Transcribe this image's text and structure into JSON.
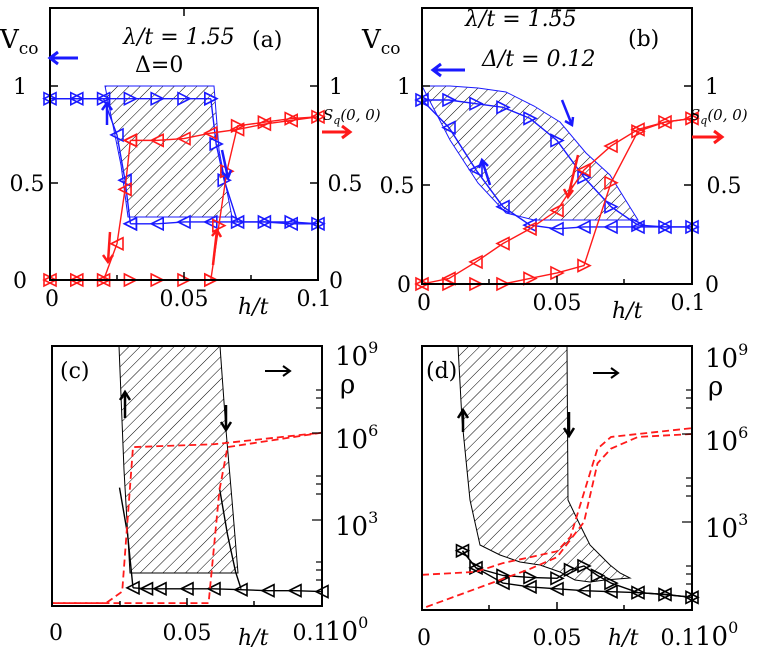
{
  "colors": {
    "blue": "#1a1aff",
    "red": "#ff1a1a",
    "black": "#000000"
  },
  "panels": {
    "a": {
      "label": "(a)",
      "ylabel": "V",
      "ylabel_sub": "co",
      "param1": "λ/t = 1.55",
      "param2": "Δ=0",
      "right_label": "S",
      "right_sub": "q",
      "right_arg": "(0, 0)",
      "xlabel": "h/t",
      "xticks": [
        "0",
        "0.05",
        "0.1"
      ],
      "yticks_left": [
        "0",
        "0.5",
        "1"
      ],
      "yticks_right": [
        "0",
        "0.5",
        "1"
      ]
    },
    "b": {
      "label": "(b)",
      "ylabel": "V",
      "ylabel_sub": "co",
      "param1": "λ/t = 1.55",
      "param2": "Δ/t = 0.12",
      "right_label": "S",
      "right_sub": "q",
      "right_arg": "(0, 0)",
      "xlabel": "h/t",
      "xticks": [
        "0",
        "0.05",
        "0.1"
      ],
      "yticks_left": [
        "0",
        "0.5",
        "1"
      ],
      "yticks_right": [
        "0",
        "0.5",
        "1"
      ]
    },
    "c": {
      "label": "(c)",
      "rlabel": "ρ",
      "xlabel": "h/t",
      "xticks": [
        "0",
        "0.05",
        "0.1"
      ],
      "rticks": [
        {
          "base": "10",
          "exp": "0"
        },
        {
          "base": "10",
          "exp": "3"
        },
        {
          "base": "10",
          "exp": "6"
        },
        {
          "base": "10",
          "exp": "9"
        }
      ]
    },
    "d": {
      "label": "(d)",
      "rlabel": "ρ",
      "xlabel": "h/t",
      "xticks": [
        "0",
        "0.05",
        "0.1"
      ],
      "rticks": [
        {
          "base": "10",
          "exp": "0"
        },
        {
          "base": "10",
          "exp": "3"
        },
        {
          "base": "10",
          "exp": "6"
        },
        {
          "base": "10",
          "exp": "9"
        }
      ]
    }
  },
  "chart_data": [
    {
      "panel": "a",
      "type": "line",
      "xlabel": "h/t",
      "xlim": [
        0,
        0.1
      ],
      "ylim": [
        0,
        1.05
      ],
      "y2lim": [
        0,
        1.05
      ],
      "series": [
        {
          "axis": "left",
          "color": "blue",
          "marker": "right-triangle",
          "x": [
            0,
            0.01,
            0.02,
            0.03,
            0.04,
            0.05,
            0.06
          ],
          "y": [
            1,
            1,
            1,
            1,
            1,
            1,
            1
          ]
        },
        {
          "axis": "left",
          "color": "blue",
          "marker": "right-triangle",
          "x": [
            0.06,
            0.062,
            0.065,
            0.07,
            0.08,
            0.09,
            0.1
          ],
          "y": [
            1,
            0.75,
            0.55,
            0.32,
            0.32,
            0.32,
            0.31
          ]
        },
        {
          "axis": "left",
          "color": "blue",
          "marker": "left-triangle",
          "x": [
            0.1,
            0.09,
            0.08,
            0.07,
            0.06,
            0.05,
            0.04,
            0.03
          ],
          "y": [
            0.31,
            0.31,
            0.32,
            0.32,
            0.32,
            0.32,
            0.31,
            0.31
          ]
        },
        {
          "axis": "left",
          "color": "blue",
          "marker": "left-triangle",
          "x": [
            0.03,
            0.028,
            0.025,
            0.02,
            0.01,
            0
          ],
          "y": [
            0.31,
            0.55,
            0.8,
            1,
            1,
            1
          ]
        },
        {
          "axis": "right",
          "color": "red",
          "marker": "right-triangle",
          "x": [
            0,
            0.01,
            0.02,
            0.03,
            0.04,
            0.05,
            0.06
          ],
          "y": [
            0,
            0,
            0,
            0,
            0,
            0,
            0
          ]
        },
        {
          "axis": "right",
          "color": "red",
          "marker": "right-triangle",
          "x": [
            0.06,
            0.063,
            0.066,
            0.07,
            0.08,
            0.09,
            0.1
          ],
          "y": [
            0,
            0.3,
            0.6,
            0.85,
            0.87,
            0.89,
            0.9
          ]
        },
        {
          "axis": "right",
          "color": "red",
          "marker": "left-triangle",
          "x": [
            0.1,
            0.09,
            0.08,
            0.07,
            0.06,
            0.05,
            0.04,
            0.03
          ],
          "y": [
            0.9,
            0.88,
            0.86,
            0.83,
            0.81,
            0.78,
            0.77,
            0.77
          ]
        },
        {
          "axis": "right",
          "color": "red",
          "marker": "left-triangle",
          "x": [
            0.03,
            0.028,
            0.025,
            0.02,
            0.01,
            0
          ],
          "y": [
            0.77,
            0.5,
            0.2,
            0,
            0,
            0
          ]
        }
      ]
    },
    {
      "panel": "b",
      "type": "line",
      "xlabel": "h/t",
      "xlim": [
        0,
        0.1
      ],
      "ylim": [
        0,
        1.05
      ],
      "y2lim": [
        0,
        1.05
      ],
      "series": [
        {
          "axis": "left",
          "color": "blue",
          "marker": "right-triangle",
          "x": [
            0,
            0.01,
            0.02,
            0.03,
            0.04,
            0.05,
            0.06,
            0.07,
            0.08,
            0.09,
            0.1
          ],
          "y": [
            1,
            1,
            0.98,
            0.96,
            0.9,
            0.78,
            0.58,
            0.42,
            0.32,
            0.31,
            0.31
          ]
        },
        {
          "axis": "left",
          "color": "blue",
          "marker": "left-triangle",
          "x": [
            0.1,
            0.09,
            0.08,
            0.07,
            0.06,
            0.05,
            0.04,
            0.03,
            0.02,
            0.01,
            0
          ],
          "y": [
            0.31,
            0.31,
            0.31,
            0.31,
            0.31,
            0.3,
            0.32,
            0.42,
            0.62,
            0.85,
            1
          ]
        },
        {
          "axis": "right",
          "color": "red",
          "marker": "right-triangle",
          "x": [
            0,
            0.01,
            0.02,
            0.03,
            0.04,
            0.05,
            0.06,
            0.07,
            0.08,
            0.09,
            0.1
          ],
          "y": [
            0,
            0,
            0,
            0,
            0.03,
            0.06,
            0.1,
            0.55,
            0.83,
            0.88,
            0.9
          ]
        },
        {
          "axis": "right",
          "color": "red",
          "marker": "left-triangle",
          "x": [
            0.1,
            0.09,
            0.08,
            0.07,
            0.06,
            0.05,
            0.04,
            0.03,
            0.02,
            0.01,
            0
          ],
          "y": [
            0.9,
            0.88,
            0.84,
            0.75,
            0.62,
            0.4,
            0.3,
            0.22,
            0.12,
            0.03,
            0
          ]
        }
      ]
    },
    {
      "panel": "c",
      "type": "line",
      "xlabel": "h/t",
      "xlim": [
        0,
        0.1
      ],
      "y2lim": [
        0,
        9
      ],
      "y2scale": "log10",
      "series": [
        {
          "axis": "left",
          "color": "black",
          "marker": "left-triangle",
          "x": [
            0.03,
            0.035,
            0.04,
            0.05,
            0.06,
            0.07,
            0.08,
            0.09,
            0.1
          ],
          "y": [
            0.13,
            0.12,
            0.12,
            0.12,
            0.12,
            0.11,
            0.1,
            0.1,
            0.09
          ]
        },
        {
          "axis": "left",
          "color": "black",
          "marker": "none",
          "x": [
            0.025,
            0.028,
            0.03
          ],
          "y": [
            1.2,
            0.7,
            0.13
          ]
        },
        {
          "axis": "left",
          "color": "black",
          "marker": "none",
          "x": [
            0.062,
            0.065,
            0.068,
            0.07
          ],
          "y": [
            1.2,
            0.7,
            0.3,
            0.12
          ]
        },
        {
          "axis": "right",
          "color": "red",
          "marker": "none",
          "dash": true,
          "x": [
            0,
            0.02,
            0.026,
            0.03,
            0.06,
            0.1
          ],
          "y": [
            0.1,
            0.1,
            0.5,
            5.5,
            5.6,
            6.0
          ]
        },
        {
          "axis": "right",
          "color": "red",
          "marker": "none",
          "dash": true,
          "x": [
            0.1,
            0.065,
            0.062,
            0.058,
            0
          ],
          "y": [
            6.0,
            5.5,
            4.0,
            0.1,
            0.1
          ]
        }
      ]
    },
    {
      "panel": "d",
      "type": "line",
      "xlabel": "h/t",
      "xlim": [
        0,
        0.1
      ],
      "y2lim": [
        0,
        9
      ],
      "y2scale": "log10",
      "series": [
        {
          "axis": "left",
          "color": "black",
          "marker": "left-triangle",
          "x": [
            0.1,
            0.09,
            0.08,
            0.07,
            0.06,
            0.05,
            0.04,
            0.03,
            0.02,
            0.015
          ],
          "y": [
            0.07,
            0.1,
            0.12,
            0.13,
            0.14,
            0.16,
            0.18,
            0.22,
            0.38,
            0.56
          ]
        },
        {
          "axis": "left",
          "color": "black",
          "marker": "right-triangle",
          "x": [
            0.015,
            0.02,
            0.03,
            0.04,
            0.05,
            0.055,
            0.06,
            0.065,
            0.07,
            0.08,
            0.09,
            0.1
          ],
          "y": [
            0.56,
            0.38,
            0.3,
            0.28,
            0.27,
            0.36,
            0.4,
            0.3,
            0.22,
            0.12,
            0.1,
            0.07
          ]
        },
        {
          "axis": "right",
          "color": "red",
          "marker": "none",
          "dash": true,
          "x": [
            0,
            0.02,
            0.03,
            0.04,
            0.05,
            0.055,
            0.06,
            0.065,
            0.07,
            0.1
          ],
          "y": [
            1.2,
            1.3,
            1.6,
            1.8,
            2.0,
            2.5,
            4.0,
            5.5,
            5.9,
            6.2
          ]
        },
        {
          "axis": "right",
          "color": "red",
          "marker": "none",
          "dash": true,
          "x": [
            0.1,
            0.08,
            0.07,
            0.065,
            0.06,
            0.05,
            0.04,
            0
          ],
          "y": [
            6.0,
            5.9,
            5.5,
            5.0,
            3.0,
            1.8,
            1.4,
            0.05
          ]
        }
      ]
    }
  ]
}
